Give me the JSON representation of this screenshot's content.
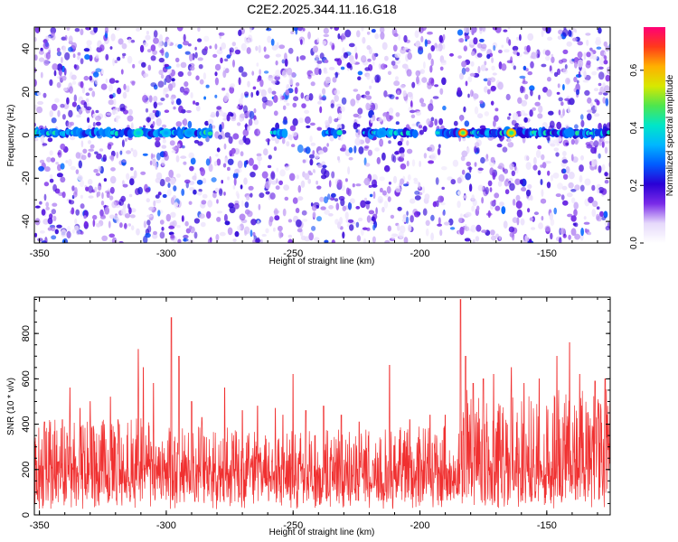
{
  "figure_title": "C2E2.2025.344.11.16.G18",
  "chart_data": [
    {
      "type": "heatmap",
      "xlabel": "Height of straight line (km)",
      "ylabel": "Frequency (Hz)",
      "xlim": [
        -352,
        -125
      ],
      "ylim": [
        -50,
        50
      ],
      "x_ticks": [
        -350,
        -300,
        -250,
        -200,
        -150
      ],
      "y_ticks": [
        -40,
        -20,
        0,
        20,
        40
      ],
      "colorbar": {
        "label": "Normalized spectral amplitude",
        "range": [
          0,
          0.75
        ],
        "ticks": [
          0.0,
          0.2,
          0.4,
          0.6
        ],
        "colormap": [
          "#ffffff",
          "#e6d9fb",
          "#7a2be8",
          "#2a00d5",
          "#005cff",
          "#00b7ff",
          "#00e6c8",
          "#4ee64e",
          "#d8e800",
          "#ffb000",
          "#ff3a1a",
          "#ff0076"
        ]
      },
      "ridge": {
        "center_frequency_hz": 1.0,
        "segments_km": [
          [
            -352,
            -282
          ],
          [
            -258,
            -253
          ],
          [
            -238,
            -231
          ],
          [
            -222,
            -202
          ],
          [
            -193,
            -125
          ]
        ],
        "peak_positions_km": [
          -311,
          -300,
          -291,
          -215,
          -183,
          -164,
          -141
        ],
        "peak_amplitudes": [
          0.42,
          0.36,
          0.33,
          0.32,
          0.68,
          0.62,
          0.3
        ]
      }
    },
    {
      "type": "line",
      "color": "#f03030",
      "xlabel": "Height of straight line (km)",
      "ylabel": "SNR (10 * v/v)",
      "xlim": [
        -352,
        -125
      ],
      "ylim": [
        0,
        960
      ],
      "x_ticks": [
        -350,
        -300,
        -250,
        -200,
        -150
      ],
      "y_ticks": [
        0,
        200,
        400,
        600,
        800
      ],
      "baseline_upper_envelope": [
        {
          "x": -352,
          "y": 420
        },
        {
          "x": -313,
          "y": 420
        },
        {
          "x": -309,
          "y": 520
        },
        {
          "x": -305,
          "y": 380
        },
        {
          "x": -283,
          "y": 400
        },
        {
          "x": -260,
          "y": 370
        },
        {
          "x": -200,
          "y": 390
        },
        {
          "x": -188,
          "y": 400
        },
        {
          "x": -186,
          "y": 240
        },
        {
          "x": -183,
          "y": 560
        },
        {
          "x": -170,
          "y": 500
        },
        {
          "x": -150,
          "y": 560
        },
        {
          "x": -125,
          "y": 560
        }
      ],
      "peaks": [
        {
          "x": -348,
          "y": 410
        },
        {
          "x": -341,
          "y": 420
        },
        {
          "x": -338,
          "y": 560
        },
        {
          "x": -334,
          "y": 470
        },
        {
          "x": -330,
          "y": 500
        },
        {
          "x": -322,
          "y": 520
        },
        {
          "x": -319,
          "y": 420
        },
        {
          "x": -311,
          "y": 730
        },
        {
          "x": -309,
          "y": 650
        },
        {
          "x": -305,
          "y": 580
        },
        {
          "x": -298,
          "y": 870
        },
        {
          "x": -295,
          "y": 700
        },
        {
          "x": -290,
          "y": 500
        },
        {
          "x": -286,
          "y": 430
        },
        {
          "x": -277,
          "y": 560
        },
        {
          "x": -270,
          "y": 460
        },
        {
          "x": -264,
          "y": 480
        },
        {
          "x": -257,
          "y": 470
        },
        {
          "x": -254,
          "y": 440
        },
        {
          "x": -250,
          "y": 620
        },
        {
          "x": -245,
          "y": 460
        },
        {
          "x": -238,
          "y": 480
        },
        {
          "x": -231,
          "y": 440
        },
        {
          "x": -224,
          "y": 410
        },
        {
          "x": -212,
          "y": 660
        },
        {
          "x": -204,
          "y": 420
        },
        {
          "x": -196,
          "y": 440
        },
        {
          "x": -190,
          "y": 440
        },
        {
          "x": -184,
          "y": 950
        },
        {
          "x": -182,
          "y": 700
        },
        {
          "x": -179,
          "y": 580
        },
        {
          "x": -175,
          "y": 600
        },
        {
          "x": -171,
          "y": 620
        },
        {
          "x": -164,
          "y": 650
        },
        {
          "x": -159,
          "y": 580
        },
        {
          "x": -153,
          "y": 600
        },
        {
          "x": -146,
          "y": 700
        },
        {
          "x": -141,
          "y": 760
        },
        {
          "x": -137,
          "y": 620
        },
        {
          "x": -131,
          "y": 590
        },
        {
          "x": -127,
          "y": 600
        }
      ]
    }
  ]
}
